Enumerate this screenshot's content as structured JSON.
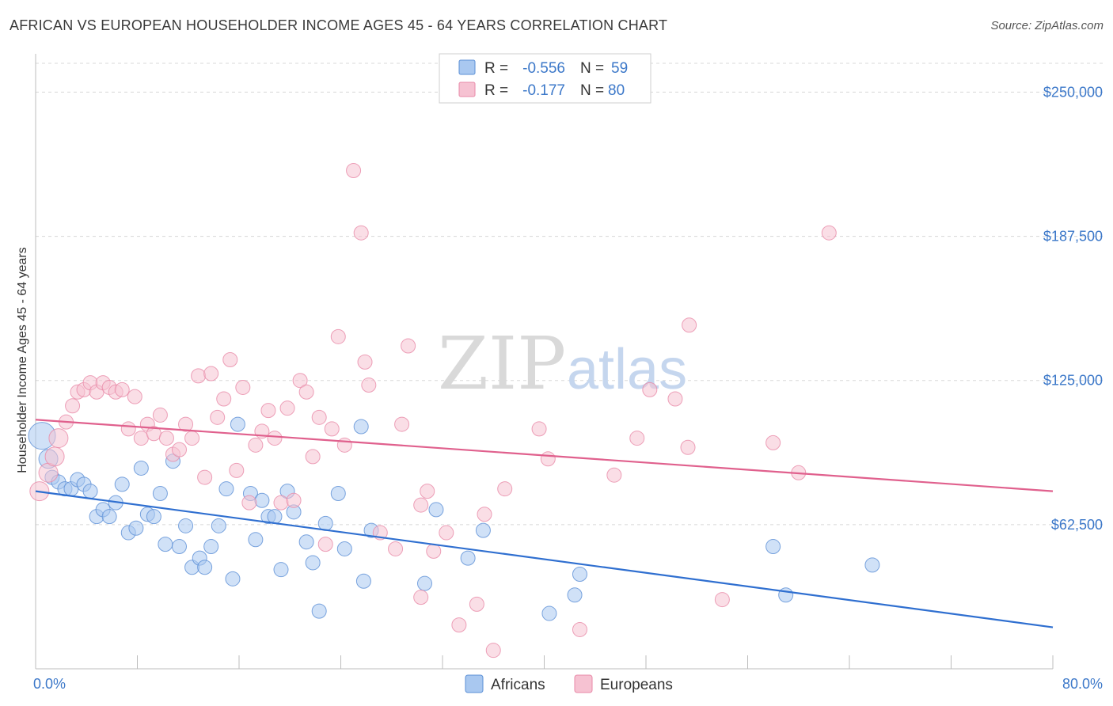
{
  "title": "AFRICAN VS EUROPEAN HOUSEHOLDER INCOME AGES 45 - 64 YEARS CORRELATION CHART",
  "source": "Source: ZipAtlas.com",
  "watermark": {
    "zip": "ZIP",
    "atlas": "atlas"
  },
  "colors": {
    "africans_fill": "#a9c8f0",
    "africans_stroke": "#5b8fd6",
    "africans_line": "#2f6fd0",
    "europeans_fill": "#f6c2d2",
    "europeans_stroke": "#e88aa8",
    "europeans_line": "#e0608d",
    "accent_text": "#3c78c9",
    "grid": "#d8d8d8"
  },
  "stats": [
    {
      "r_label": "R =",
      "r_value": "-0.556",
      "n_label": "N =",
      "n_value": "59"
    },
    {
      "r_label": "R =",
      "r_value": "-0.177",
      "n_label": "N =",
      "n_value": "80"
    }
  ],
  "chart_data": {
    "type": "scatter",
    "title": "AFRICAN VS EUROPEAN HOUSEHOLDER INCOME AGES 45 - 64 YEARS CORRELATION CHART",
    "xlabel": "",
    "ylabel": "Householder Income Ages 45 - 64 years",
    "xlim": [
      0,
      80
    ],
    "ylim": [
      0,
      262500
    ],
    "x_tick_labels": [
      "0.0%",
      "80.0%"
    ],
    "y_ticks": [
      62500,
      125000,
      187500,
      250000
    ],
    "y_tick_labels": [
      "$62,500",
      "$125,000",
      "$187,500",
      "$250,000"
    ],
    "grid": true,
    "legend_position": "bottom-center",
    "series": [
      {
        "name": "Africans",
        "trend": {
          "x": [
            0,
            80
          ],
          "y": [
            77000,
            18000
          ]
        },
        "points": [
          {
            "x": 0.5,
            "y": 101000,
            "s": 3
          },
          {
            "x": 1.0,
            "y": 91000,
            "s": 2
          },
          {
            "x": 1.3,
            "y": 83000,
            "s": 1
          },
          {
            "x": 1.8,
            "y": 81000,
            "s": 1
          },
          {
            "x": 2.3,
            "y": 78000,
            "s": 1
          },
          {
            "x": 2.8,
            "y": 78000,
            "s": 1
          },
          {
            "x": 3.3,
            "y": 82000,
            "s": 1
          },
          {
            "x": 3.8,
            "y": 80000,
            "s": 1
          },
          {
            "x": 4.3,
            "y": 77000,
            "s": 1
          },
          {
            "x": 4.8,
            "y": 66000,
            "s": 1
          },
          {
            "x": 5.3,
            "y": 69000,
            "s": 1
          },
          {
            "x": 5.8,
            "y": 66000,
            "s": 1
          },
          {
            "x": 6.3,
            "y": 72000,
            "s": 1
          },
          {
            "x": 6.8,
            "y": 80000,
            "s": 1
          },
          {
            "x": 7.3,
            "y": 59000,
            "s": 1
          },
          {
            "x": 7.9,
            "y": 61000,
            "s": 1
          },
          {
            "x": 8.3,
            "y": 87000,
            "s": 1
          },
          {
            "x": 8.8,
            "y": 67000,
            "s": 1
          },
          {
            "x": 9.3,
            "y": 66000,
            "s": 1
          },
          {
            "x": 9.8,
            "y": 76000,
            "s": 1
          },
          {
            "x": 10.2,
            "y": 54000,
            "s": 1
          },
          {
            "x": 10.8,
            "y": 90000,
            "s": 1
          },
          {
            "x": 11.3,
            "y": 53000,
            "s": 1
          },
          {
            "x": 11.8,
            "y": 62000,
            "s": 1
          },
          {
            "x": 12.3,
            "y": 44000,
            "s": 1
          },
          {
            "x": 12.9,
            "y": 48000,
            "s": 1
          },
          {
            "x": 13.3,
            "y": 44000,
            "s": 1
          },
          {
            "x": 13.8,
            "y": 53000,
            "s": 1
          },
          {
            "x": 14.4,
            "y": 62000,
            "s": 1
          },
          {
            "x": 15.0,
            "y": 78000,
            "s": 1
          },
          {
            "x": 15.5,
            "y": 39000,
            "s": 1
          },
          {
            "x": 15.9,
            "y": 106000,
            "s": 1
          },
          {
            "x": 16.9,
            "y": 76000,
            "s": 1
          },
          {
            "x": 17.3,
            "y": 56000,
            "s": 1
          },
          {
            "x": 17.8,
            "y": 73000,
            "s": 1
          },
          {
            "x": 18.3,
            "y": 66000,
            "s": 1
          },
          {
            "x": 18.8,
            "y": 66000,
            "s": 1
          },
          {
            "x": 19.3,
            "y": 43000,
            "s": 1
          },
          {
            "x": 19.8,
            "y": 77000,
            "s": 1
          },
          {
            "x": 20.3,
            "y": 68000,
            "s": 1
          },
          {
            "x": 21.3,
            "y": 55000,
            "s": 1
          },
          {
            "x": 21.8,
            "y": 46000,
            "s": 1
          },
          {
            "x": 22.3,
            "y": 25000,
            "s": 1
          },
          {
            "x": 22.8,
            "y": 63000,
            "s": 1
          },
          {
            "x": 23.8,
            "y": 76000,
            "s": 1
          },
          {
            "x": 24.3,
            "y": 52000,
            "s": 1
          },
          {
            "x": 25.6,
            "y": 105000,
            "s": 1
          },
          {
            "x": 25.8,
            "y": 38000,
            "s": 1
          },
          {
            "x": 26.4,
            "y": 60000,
            "s": 1
          },
          {
            "x": 30.6,
            "y": 37000,
            "s": 1
          },
          {
            "x": 31.5,
            "y": 69000,
            "s": 1
          },
          {
            "x": 34.0,
            "y": 48000,
            "s": 1
          },
          {
            "x": 35.2,
            "y": 60000,
            "s": 1
          },
          {
            "x": 40.4,
            "y": 24000,
            "s": 1
          },
          {
            "x": 42.4,
            "y": 32000,
            "s": 1
          },
          {
            "x": 42.8,
            "y": 41000,
            "s": 1
          },
          {
            "x": 58.0,
            "y": 53000,
            "s": 1
          },
          {
            "x": 59.0,
            "y": 32000,
            "s": 1
          },
          {
            "x": 65.8,
            "y": 45000,
            "s": 1
          }
        ]
      },
      {
        "name": "Europeans",
        "trend": {
          "x": [
            0,
            80
          ],
          "y": [
            108000,
            77000
          ]
        },
        "points": [
          {
            "x": 0.3,
            "y": 77000,
            "s": 2
          },
          {
            "x": 1.0,
            "y": 85000,
            "s": 2
          },
          {
            "x": 1.5,
            "y": 92000,
            "s": 2
          },
          {
            "x": 1.8,
            "y": 100000,
            "s": 2
          },
          {
            "x": 2.4,
            "y": 107000,
            "s": 1
          },
          {
            "x": 2.9,
            "y": 114000,
            "s": 1
          },
          {
            "x": 3.3,
            "y": 120000,
            "s": 1
          },
          {
            "x": 3.8,
            "y": 121000,
            "s": 1
          },
          {
            "x": 4.3,
            "y": 124000,
            "s": 1
          },
          {
            "x": 4.8,
            "y": 120000,
            "s": 1
          },
          {
            "x": 5.3,
            "y": 124000,
            "s": 1
          },
          {
            "x": 5.8,
            "y": 122000,
            "s": 1
          },
          {
            "x": 6.3,
            "y": 120000,
            "s": 1
          },
          {
            "x": 6.8,
            "y": 121000,
            "s": 1
          },
          {
            "x": 7.3,
            "y": 104000,
            "s": 1
          },
          {
            "x": 7.8,
            "y": 118000,
            "s": 1
          },
          {
            "x": 8.3,
            "y": 100000,
            "s": 1
          },
          {
            "x": 8.8,
            "y": 106000,
            "s": 1
          },
          {
            "x": 9.3,
            "y": 102000,
            "s": 1
          },
          {
            "x": 9.8,
            "y": 110000,
            "s": 1
          },
          {
            "x": 10.3,
            "y": 100000,
            "s": 1
          },
          {
            "x": 10.8,
            "y": 93000,
            "s": 1
          },
          {
            "x": 11.3,
            "y": 95000,
            "s": 1
          },
          {
            "x": 11.8,
            "y": 106000,
            "s": 1
          },
          {
            "x": 12.3,
            "y": 100000,
            "s": 1
          },
          {
            "x": 12.8,
            "y": 127000,
            "s": 1
          },
          {
            "x": 13.3,
            "y": 83000,
            "s": 1
          },
          {
            "x": 13.8,
            "y": 128000,
            "s": 1
          },
          {
            "x": 14.3,
            "y": 109000,
            "s": 1
          },
          {
            "x": 14.8,
            "y": 117000,
            "s": 1
          },
          {
            "x": 15.3,
            "y": 134000,
            "s": 1
          },
          {
            "x": 15.8,
            "y": 86000,
            "s": 1
          },
          {
            "x": 16.3,
            "y": 122000,
            "s": 1
          },
          {
            "x": 16.8,
            "y": 72000,
            "s": 1
          },
          {
            "x": 17.3,
            "y": 97000,
            "s": 1
          },
          {
            "x": 17.8,
            "y": 103000,
            "s": 1
          },
          {
            "x": 18.3,
            "y": 112000,
            "s": 1
          },
          {
            "x": 18.8,
            "y": 100000,
            "s": 1
          },
          {
            "x": 19.3,
            "y": 72000,
            "s": 1
          },
          {
            "x": 19.8,
            "y": 113000,
            "s": 1
          },
          {
            "x": 20.3,
            "y": 73000,
            "s": 1
          },
          {
            "x": 20.8,
            "y": 125000,
            "s": 1
          },
          {
            "x": 21.3,
            "y": 120000,
            "s": 1
          },
          {
            "x": 21.8,
            "y": 92000,
            "s": 1
          },
          {
            "x": 22.3,
            "y": 109000,
            "s": 1
          },
          {
            "x": 22.8,
            "y": 54000,
            "s": 1
          },
          {
            "x": 23.3,
            "y": 104000,
            "s": 1
          },
          {
            "x": 23.8,
            "y": 144000,
            "s": 1
          },
          {
            "x": 24.3,
            "y": 97000,
            "s": 1
          },
          {
            "x": 25.0,
            "y": 216000,
            "s": 1
          },
          {
            "x": 25.6,
            "y": 189000,
            "s": 1
          },
          {
            "x": 25.9,
            "y": 133000,
            "s": 1
          },
          {
            "x": 26.2,
            "y": 123000,
            "s": 1
          },
          {
            "x": 27.1,
            "y": 59000,
            "s": 1
          },
          {
            "x": 28.3,
            "y": 52000,
            "s": 1
          },
          {
            "x": 28.8,
            "y": 106000,
            "s": 1
          },
          {
            "x": 29.3,
            "y": 140000,
            "s": 1
          },
          {
            "x": 30.3,
            "y": 31000,
            "s": 1
          },
          {
            "x": 30.3,
            "y": 71000,
            "s": 1
          },
          {
            "x": 30.8,
            "y": 77000,
            "s": 1
          },
          {
            "x": 31.3,
            "y": 51000,
            "s": 1
          },
          {
            "x": 32.3,
            "y": 59000,
            "s": 1
          },
          {
            "x": 33.3,
            "y": 19000,
            "s": 1
          },
          {
            "x": 34.7,
            "y": 28000,
            "s": 1
          },
          {
            "x": 35.3,
            "y": 67000,
            "s": 1
          },
          {
            "x": 36.0,
            "y": 8000,
            "s": 1
          },
          {
            "x": 36.9,
            "y": 78000,
            "s": 1
          },
          {
            "x": 39.6,
            "y": 104000,
            "s": 1
          },
          {
            "x": 40.3,
            "y": 91000,
            "s": 1
          },
          {
            "x": 42.8,
            "y": 17000,
            "s": 1
          },
          {
            "x": 45.5,
            "y": 84000,
            "s": 1
          },
          {
            "x": 47.3,
            "y": 100000,
            "s": 1
          },
          {
            "x": 48.3,
            "y": 121000,
            "s": 1
          },
          {
            "x": 50.3,
            "y": 117000,
            "s": 1
          },
          {
            "x": 51.3,
            "y": 96000,
            "s": 1
          },
          {
            "x": 51.4,
            "y": 149000,
            "s": 1
          },
          {
            "x": 54.0,
            "y": 30000,
            "s": 1
          },
          {
            "x": 58.0,
            "y": 98000,
            "s": 1
          },
          {
            "x": 60.0,
            "y": 85000,
            "s": 1
          },
          {
            "x": 62.4,
            "y": 189000,
            "s": 1
          }
        ]
      }
    ]
  }
}
